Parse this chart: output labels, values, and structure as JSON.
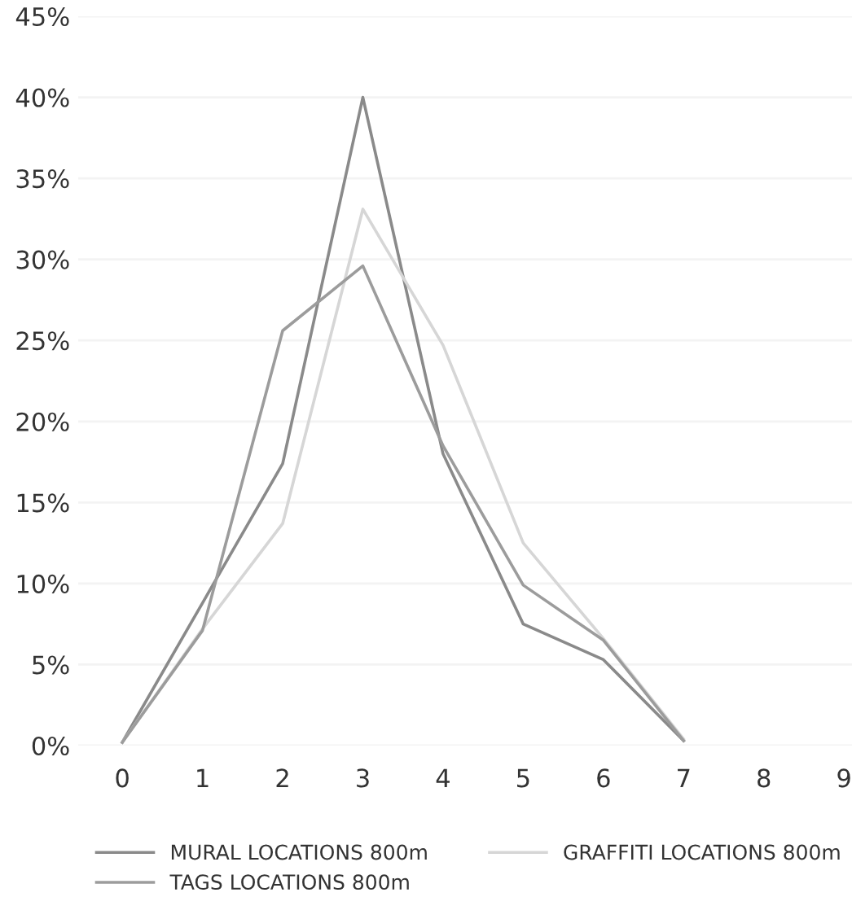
{
  "chart_data": {
    "type": "line",
    "x": [
      0,
      1,
      2,
      3,
      4,
      5,
      6,
      7
    ],
    "series": [
      {
        "name": "MURAL LOCATIONS 800m",
        "color": "#8a8a8a",
        "values": [
          0.2,
          8.8,
          17.4,
          40.0,
          18.0,
          7.5,
          5.3,
          0.3
        ]
      },
      {
        "name": "GRAFFITI LOCATIONS 800m",
        "color": "#d6d6d6",
        "values": [
          0.2,
          7.2,
          13.7,
          33.1,
          24.7,
          12.5,
          6.6,
          0.4
        ]
      },
      {
        "name": "TAGS LOCATIONS 800m",
        "color": "#9c9c9c",
        "values": [
          0.2,
          7.1,
          25.6,
          29.6,
          18.5,
          9.9,
          6.5,
          0.3
        ]
      }
    ],
    "xlim": [
      -0.55,
      9.1
    ],
    "xticks": [
      0,
      1,
      2,
      3,
      4,
      5,
      6,
      7,
      8,
      9
    ],
    "ylim": [
      0,
      45
    ],
    "yticks": [
      {
        "value": 0,
        "label": "0%"
      },
      {
        "value": 5,
        "label": "5%"
      },
      {
        "value": 10,
        "label": "10%"
      },
      {
        "value": 15,
        "label": "15%"
      },
      {
        "value": 20,
        "label": "20%"
      },
      {
        "value": 25,
        "label": "25%"
      },
      {
        "value": 30,
        "label": "30%"
      },
      {
        "value": 35,
        "label": "35%"
      },
      {
        "value": 40,
        "label": "40%"
      },
      {
        "value": 45,
        "label": "45%"
      }
    ],
    "grid": "y",
    "legend": "bottom",
    "marker": "none",
    "line_style": "solid"
  }
}
